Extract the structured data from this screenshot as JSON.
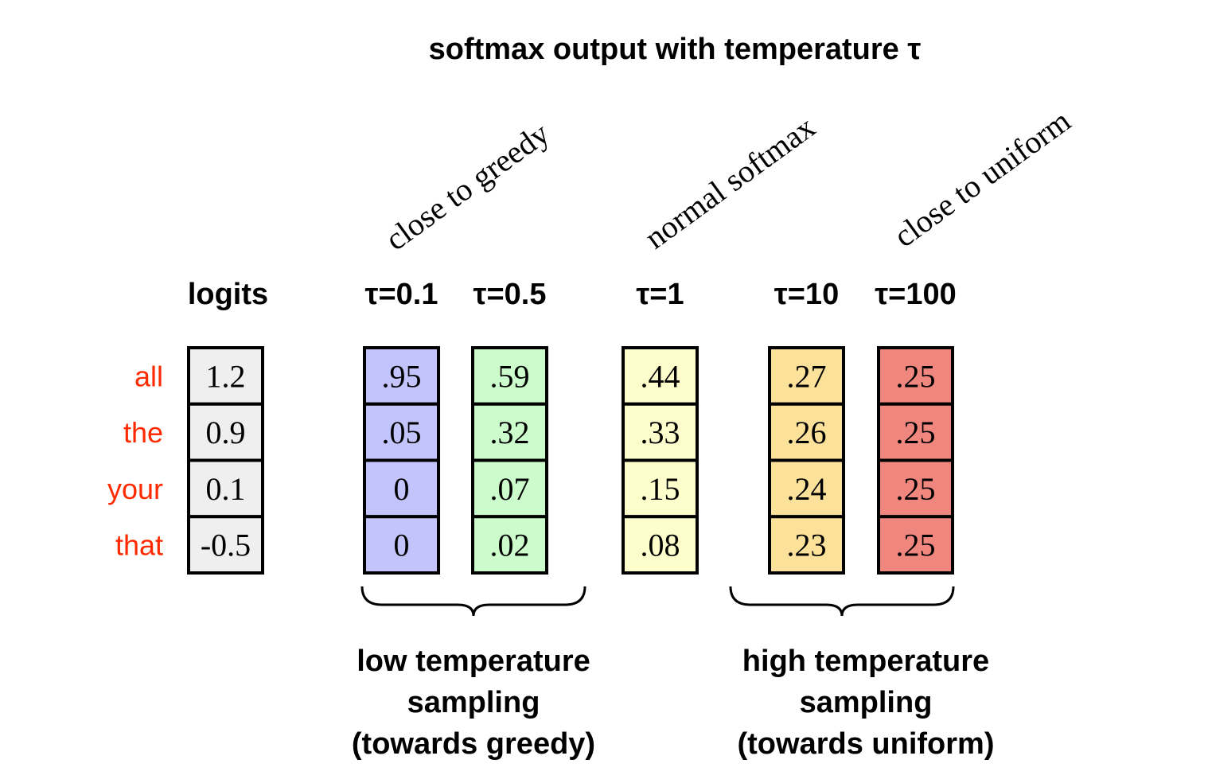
{
  "title": "softmax output with temperature τ",
  "row_labels": [
    "all",
    "the",
    "your",
    "that"
  ],
  "row_label_color": "#ff2a00",
  "rotated_labels": [
    "close to greedy",
    "normal softmax",
    "close to uniform"
  ],
  "columns": [
    {
      "header": "logits",
      "values": [
        "1.2",
        "0.9",
        "0.1",
        "-0.5"
      ],
      "color": "#efefef"
    },
    {
      "header": "τ=0.1",
      "values": [
        ".95",
        ".05",
        "0",
        "0"
      ],
      "color": "#c4c4fc"
    },
    {
      "header": "τ=0.5",
      "values": [
        ".59",
        ".32",
        ".07",
        ".02"
      ],
      "color": "#ccfccc"
    },
    {
      "header": "τ=1",
      "values": [
        ".44",
        ".33",
        ".15",
        ".08"
      ],
      "color": "#fefecc"
    },
    {
      "header": "τ=10",
      "values": [
        ".27",
        ".26",
        ".24",
        ".23"
      ],
      "color": "#fce19a"
    },
    {
      "header": "τ=100",
      "values": [
        ".25",
        ".25",
        ".25",
        ".25"
      ],
      "color": "#f0877f"
    }
  ],
  "groups": [
    {
      "lines": [
        "low temperature",
        "sampling",
        "(towards greedy)"
      ]
    },
    {
      "lines": [
        "high temperature",
        "sampling",
        "(towards uniform)"
      ]
    }
  ]
}
